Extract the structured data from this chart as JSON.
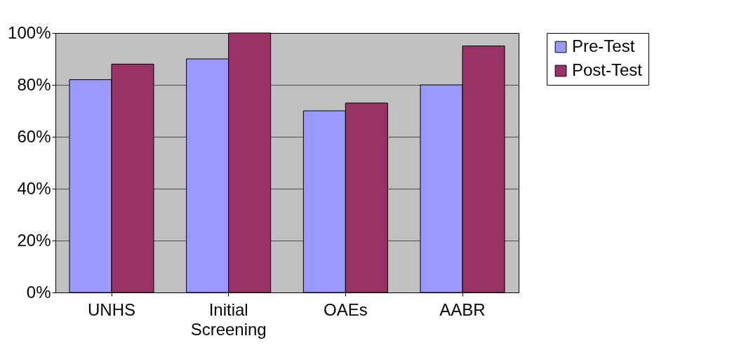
{
  "chart_data": {
    "type": "bar",
    "categories": [
      "UNHS",
      "Initial Screening",
      "OAEs",
      "AABR"
    ],
    "series": [
      {
        "name": "Pre-Test",
        "color": "#9999ff",
        "values": [
          82,
          90,
          70,
          80
        ]
      },
      {
        "name": "Post-Test",
        "color": "#993366",
        "values": [
          88,
          100,
          73,
          95
        ]
      }
    ],
    "ylim": [
      0,
      100
    ],
    "yticks": [
      {
        "value": 0,
        "label": "0%"
      },
      {
        "value": 20,
        "label": "20%"
      },
      {
        "value": 40,
        "label": "40%"
      },
      {
        "value": 60,
        "label": "60%"
      },
      {
        "value": 80,
        "label": "80%"
      },
      {
        "value": 100,
        "label": "100%"
      }
    ],
    "grid": "y",
    "legend": "right"
  }
}
